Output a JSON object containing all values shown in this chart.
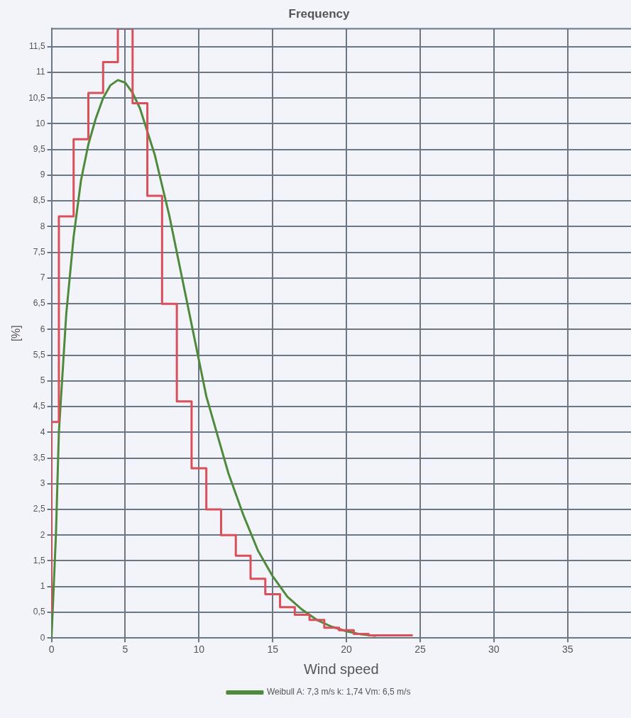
{
  "chart_data": {
    "type": "step",
    "title": "Frequency",
    "xlabel": "Wind speed",
    "ylabel": "[%]",
    "xlim": [
      0,
      39.3
    ],
    "xticks": [
      0,
      5,
      10,
      15,
      20,
      25,
      30,
      35
    ],
    "ylim": [
      0,
      11.85
    ],
    "yticks": [
      0,
      {
        "value": 0.5,
        "label": "0,5"
      },
      1,
      {
        "value": 1.5,
        "label": "1,5"
      },
      2,
      {
        "value": 2.5,
        "label": "2,5"
      },
      3,
      {
        "value": 3.5,
        "label": "3,5"
      },
      4,
      {
        "value": 4.5,
        "label": "4,5"
      },
      5,
      {
        "value": 5.5,
        "label": "5,5"
      },
      6,
      {
        "value": 6.5,
        "label": "6,5"
      },
      7,
      {
        "value": 7.5,
        "label": "7,5"
      },
      8,
      {
        "value": 8.5,
        "label": "8,5"
      },
      9,
      {
        "value": 9.5,
        "label": "9,5"
      },
      10,
      {
        "value": 10.5,
        "label": "10,5"
      },
      11,
      {
        "value": 11.5,
        "label": "11,5"
      }
    ],
    "grid": true,
    "legend": "bottom",
    "marker": "none",
    "series": [
      {
        "color": "#d9505a",
        "x": [
          0,
          0.5,
          1.5,
          2.5,
          3.5,
          4.5,
          5.5,
          6.5,
          7.5,
          8.5,
          9.5,
          10.5,
          11.5,
          12.5,
          13.5,
          14.5,
          15.5,
          16.5,
          17.5,
          18.5,
          19.5,
          20.5,
          21.5,
          22.5,
          23.5,
          24.5
        ],
        "values": [
          0.5,
          4.2,
          8.2,
          9.7,
          10.6,
          11.2,
          11.85,
          10.4,
          8.6,
          6.5,
          4.6,
          3.3,
          2.5,
          2.0,
          1.6,
          1.15,
          0.85,
          0.6,
          0.45,
          0.35,
          0.2,
          0.15,
          0.08,
          0.05,
          0.05,
          0.05
        ]
      },
      {
        "type": "line",
        "name": "Weibull A: 7,3 m/s k: 1,74 Vm: 6,5 m/s",
        "color": "#4e8a3c",
        "x": [
          0,
          0.3,
          0.5,
          1,
          1.5,
          2,
          2.5,
          3,
          3.5,
          4,
          4.5,
          5,
          5.5,
          6,
          7,
          8,
          9,
          10,
          10.5,
          11,
          12,
          13,
          14,
          15,
          16,
          17,
          18,
          19,
          20,
          21,
          22
        ],
        "values": [
          0,
          2,
          4,
          6.3,
          7.8,
          8.9,
          9.6,
          10.1,
          10.5,
          10.75,
          10.85,
          10.8,
          10.6,
          10.3,
          9.4,
          8.2,
          6.8,
          5.4,
          4.7,
          4.2,
          3.2,
          2.4,
          1.7,
          1.2,
          0.8,
          0.55,
          0.35,
          0.22,
          0.13,
          0.07,
          0.04
        ]
      }
    ]
  }
}
